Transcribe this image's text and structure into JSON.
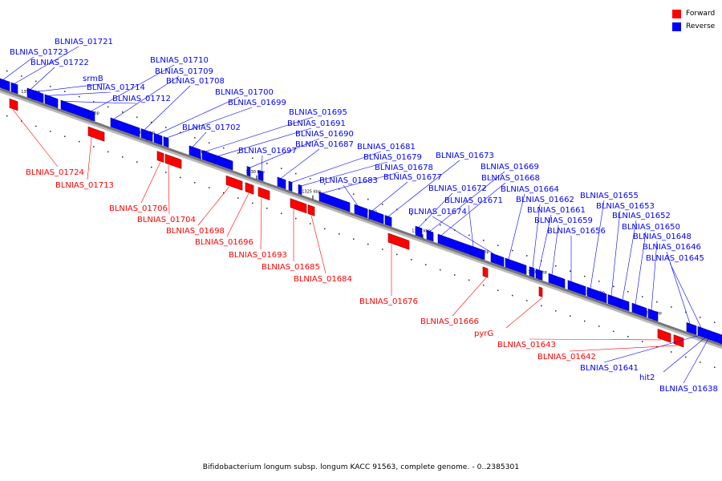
{
  "legend": {
    "forward_label": "Forward",
    "reverse_label": "Reverse",
    "forward_color": "#ff0000",
    "reverse_color": "#0000ff"
  },
  "caption": "Bifidobacterium longum subsp. longum KACC 91563, complete genome. - 0..2385301",
  "scale_labels": [
    "1350 kbp",
    "1345 kbp",
    "1340 kbp",
    "1335 kbp",
    "1330 kbp",
    "1325 kbp",
    "1320 kbp",
    "1315 kbp",
    "1310 kbp",
    "1305 kbp",
    "1300 kbp",
    "1295 kbp"
  ],
  "reverse_genes": [
    "BLNIAS_01723",
    "BLNIAS_01721",
    "BLNIAS_01722",
    "srmB",
    "BLNIAS_01714",
    "BLNIAS_01712",
    "BLNIAS_01710",
    "BLNIAS_01709",
    "BLNIAS_01708",
    "BLNIAS_01700",
    "BLNIAS_01699",
    "BLNIAS_01702",
    "BLNIAS_01695",
    "BLNIAS_01691",
    "BLNIAS_01690",
    "BLNIAS_01697",
    "BLNIAS_01687",
    "BLNIAS_01681",
    "BLNIAS_01679",
    "BLNIAS_01678",
    "BLNIAS_01683",
    "BLNIAS_01677",
    "BLNIAS_01673",
    "BLNIAS_01672",
    "BLNIAS_01669",
    "BLNIAS_01668",
    "BLNIAS_01671",
    "BLNIAS_01674",
    "BLNIAS_01664",
    "BLNIAS_01662",
    "BLNIAS_01661",
    "BLNIAS_01659",
    "BLNIAS_01656",
    "BLNIAS_01655",
    "BLNIAS_01653",
    "BLNIAS_01652",
    "BLNIAS_01650",
    "BLNIAS_01648",
    "BLNIAS_01646",
    "BLNIAS_01645",
    "BLNIAS_01641",
    "hit2",
    "BLNIAS_01638"
  ],
  "forward_genes": [
    "BLNIAS_01724",
    "BLNIAS_01713",
    "BLNIAS_01706",
    "BLNIAS_01704",
    "BLNIAS_01698",
    "BLNIAS_01696",
    "BLNIAS_01693",
    "BLNIAS_01685",
    "BLNIAS_01684",
    "BLNIAS_01676",
    "BLNIAS_01666",
    "pyrG",
    "BLNIAS_01643",
    "BLNIAS_01642"
  ]
}
